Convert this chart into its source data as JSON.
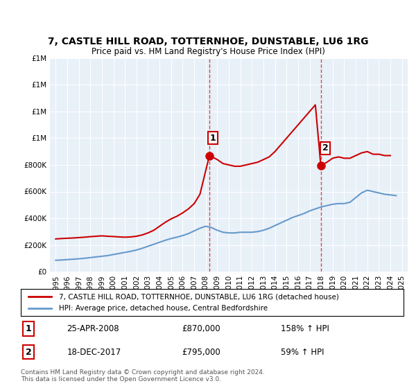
{
  "title": "7, CASTLE HILL ROAD, TOTTERNHOE, DUNSTABLE, LU6 1RG",
  "subtitle": "Price paid vs. HM Land Registry's House Price Index (HPI)",
  "legend_line1": "7, CASTLE HILL ROAD, TOTTERNHOE, DUNSTABLE, LU6 1RG (detached house)",
  "legend_line2": "HPI: Average price, detached house, Central Bedfordshire",
  "sale1_label": "1",
  "sale1_date": "25-APR-2008",
  "sale1_price": "£870,000",
  "sale1_hpi": "158% ↑ HPI",
  "sale1_year": 2008.32,
  "sale1_value": 870000,
  "sale2_label": "2",
  "sale2_date": "18-DEC-2017",
  "sale2_price": "£795,000",
  "sale2_hpi": "59% ↑ HPI",
  "sale2_year": 2017.97,
  "sale2_value": 795000,
  "footer1": "Contains HM Land Registry data © Crown copyright and database right 2024.",
  "footer2": "This data is licensed under the Open Government Licence v3.0.",
  "red_color": "#cc0000",
  "blue_color": "#6699cc",
  "background_color": "#e8f0f8",
  "ylim": [
    0,
    1600000
  ],
  "xlim": [
    1994.5,
    2025.5
  ],
  "red_x": [
    1995.0,
    1995.5,
    1996.0,
    1996.5,
    1997.0,
    1997.5,
    1998.0,
    1998.5,
    1999.0,
    1999.5,
    2000.0,
    2000.5,
    2001.0,
    2001.5,
    2002.0,
    2002.5,
    2003.0,
    2003.5,
    2004.0,
    2004.5,
    2005.0,
    2005.5,
    2006.0,
    2006.5,
    2007.0,
    2007.5,
    2008.32,
    2009.0,
    2009.5,
    2010.0,
    2010.5,
    2011.0,
    2011.5,
    2012.0,
    2012.5,
    2013.0,
    2013.5,
    2014.0,
    2014.5,
    2015.0,
    2015.5,
    2016.0,
    2016.5,
    2017.0,
    2017.5,
    2017.97,
    2018.5,
    2019.0,
    2019.5,
    2020.0,
    2020.5,
    2021.0,
    2021.5,
    2022.0,
    2022.5,
    2023.0,
    2023.5,
    2024.0
  ],
  "red_y": [
    245000,
    248000,
    250000,
    252000,
    255000,
    258000,
    262000,
    265000,
    268000,
    265000,
    263000,
    260000,
    258000,
    260000,
    265000,
    275000,
    290000,
    310000,
    340000,
    370000,
    395000,
    415000,
    440000,
    470000,
    510000,
    580000,
    870000,
    840000,
    810000,
    800000,
    790000,
    790000,
    800000,
    810000,
    820000,
    840000,
    860000,
    900000,
    950000,
    1000000,
    1050000,
    1100000,
    1150000,
    1200000,
    1250000,
    795000,
    820000,
    850000,
    860000,
    850000,
    850000,
    870000,
    890000,
    900000,
    880000,
    880000,
    870000,
    870000
  ],
  "blue_x": [
    1995.0,
    1995.5,
    1996.0,
    1996.5,
    1997.0,
    1997.5,
    1998.0,
    1998.5,
    1999.0,
    1999.5,
    2000.0,
    2000.5,
    2001.0,
    2001.5,
    2002.0,
    2002.5,
    2003.0,
    2003.5,
    2004.0,
    2004.5,
    2005.0,
    2005.5,
    2006.0,
    2006.5,
    2007.0,
    2007.5,
    2008.0,
    2008.5,
    2009.0,
    2009.5,
    2010.0,
    2010.5,
    2011.0,
    2011.5,
    2012.0,
    2012.5,
    2013.0,
    2013.5,
    2014.0,
    2014.5,
    2015.0,
    2015.5,
    2016.0,
    2016.5,
    2017.0,
    2017.5,
    2018.0,
    2018.5,
    2019.0,
    2019.5,
    2020.0,
    2020.5,
    2021.0,
    2021.5,
    2022.0,
    2022.5,
    2023.0,
    2023.5,
    2024.0,
    2024.5
  ],
  "blue_y": [
    85000,
    87000,
    90000,
    93000,
    96000,
    100000,
    105000,
    110000,
    115000,
    120000,
    128000,
    136000,
    144000,
    152000,
    162000,
    175000,
    190000,
    205000,
    220000,
    235000,
    248000,
    258000,
    270000,
    285000,
    305000,
    325000,
    340000,
    330000,
    310000,
    295000,
    290000,
    290000,
    295000,
    295000,
    295000,
    300000,
    310000,
    325000,
    345000,
    365000,
    385000,
    405000,
    420000,
    435000,
    455000,
    470000,
    485000,
    495000,
    505000,
    510000,
    510000,
    520000,
    555000,
    590000,
    610000,
    600000,
    590000,
    580000,
    575000,
    570000
  ]
}
